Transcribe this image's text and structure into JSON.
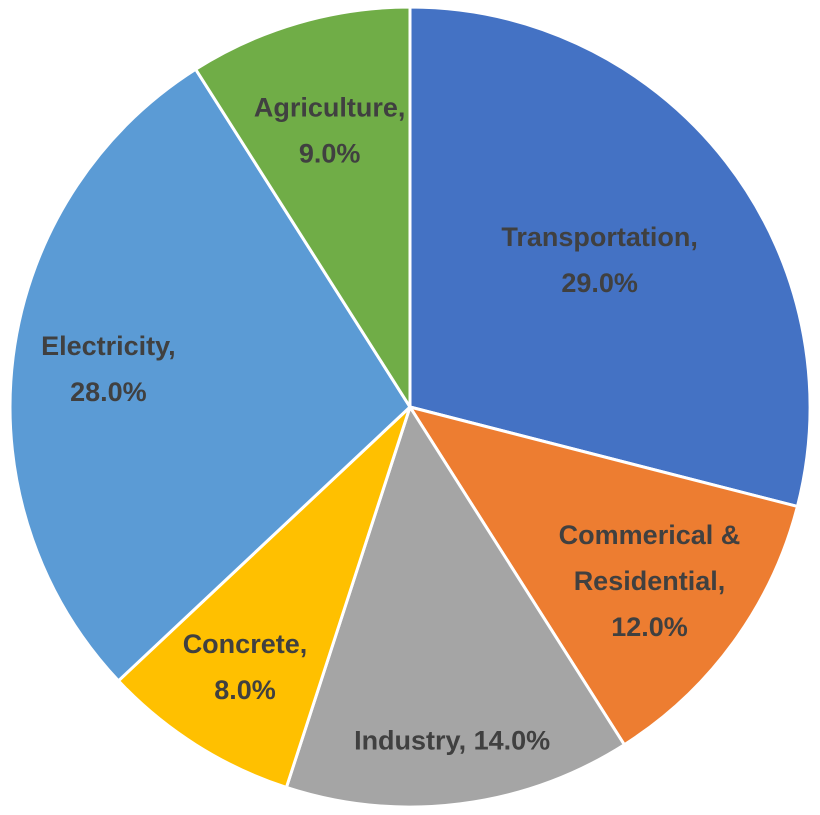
{
  "chart_data": {
    "type": "pie",
    "title": "",
    "unit": "%",
    "start_angle_deg": 0,
    "direction": "clockwise",
    "slices": [
      {
        "label": "Transportation",
        "value": 29.0,
        "display": "Transportation, 29.0%",
        "color": "#4472C4"
      },
      {
        "label": "Commerical & Residential",
        "value": 12.0,
        "display": "Commerical & Residential, 12.0%",
        "color": "#ED7D31"
      },
      {
        "label": "Industry",
        "value": 14.0,
        "display": "Industry, 14.0%",
        "color": "#A5A5A5"
      },
      {
        "label": "Concrete",
        "value": 8.0,
        "display": "Concrete, 8.0%",
        "color": "#FFC000"
      },
      {
        "label": "Electricity",
        "value": 28.0,
        "display": "Electricity, 28.0%",
        "color": "#5B9BD5"
      },
      {
        "label": "Agriculture",
        "value": 9.0,
        "display": "Agriculture, 9.0%",
        "color": "#70AD47"
      }
    ]
  }
}
